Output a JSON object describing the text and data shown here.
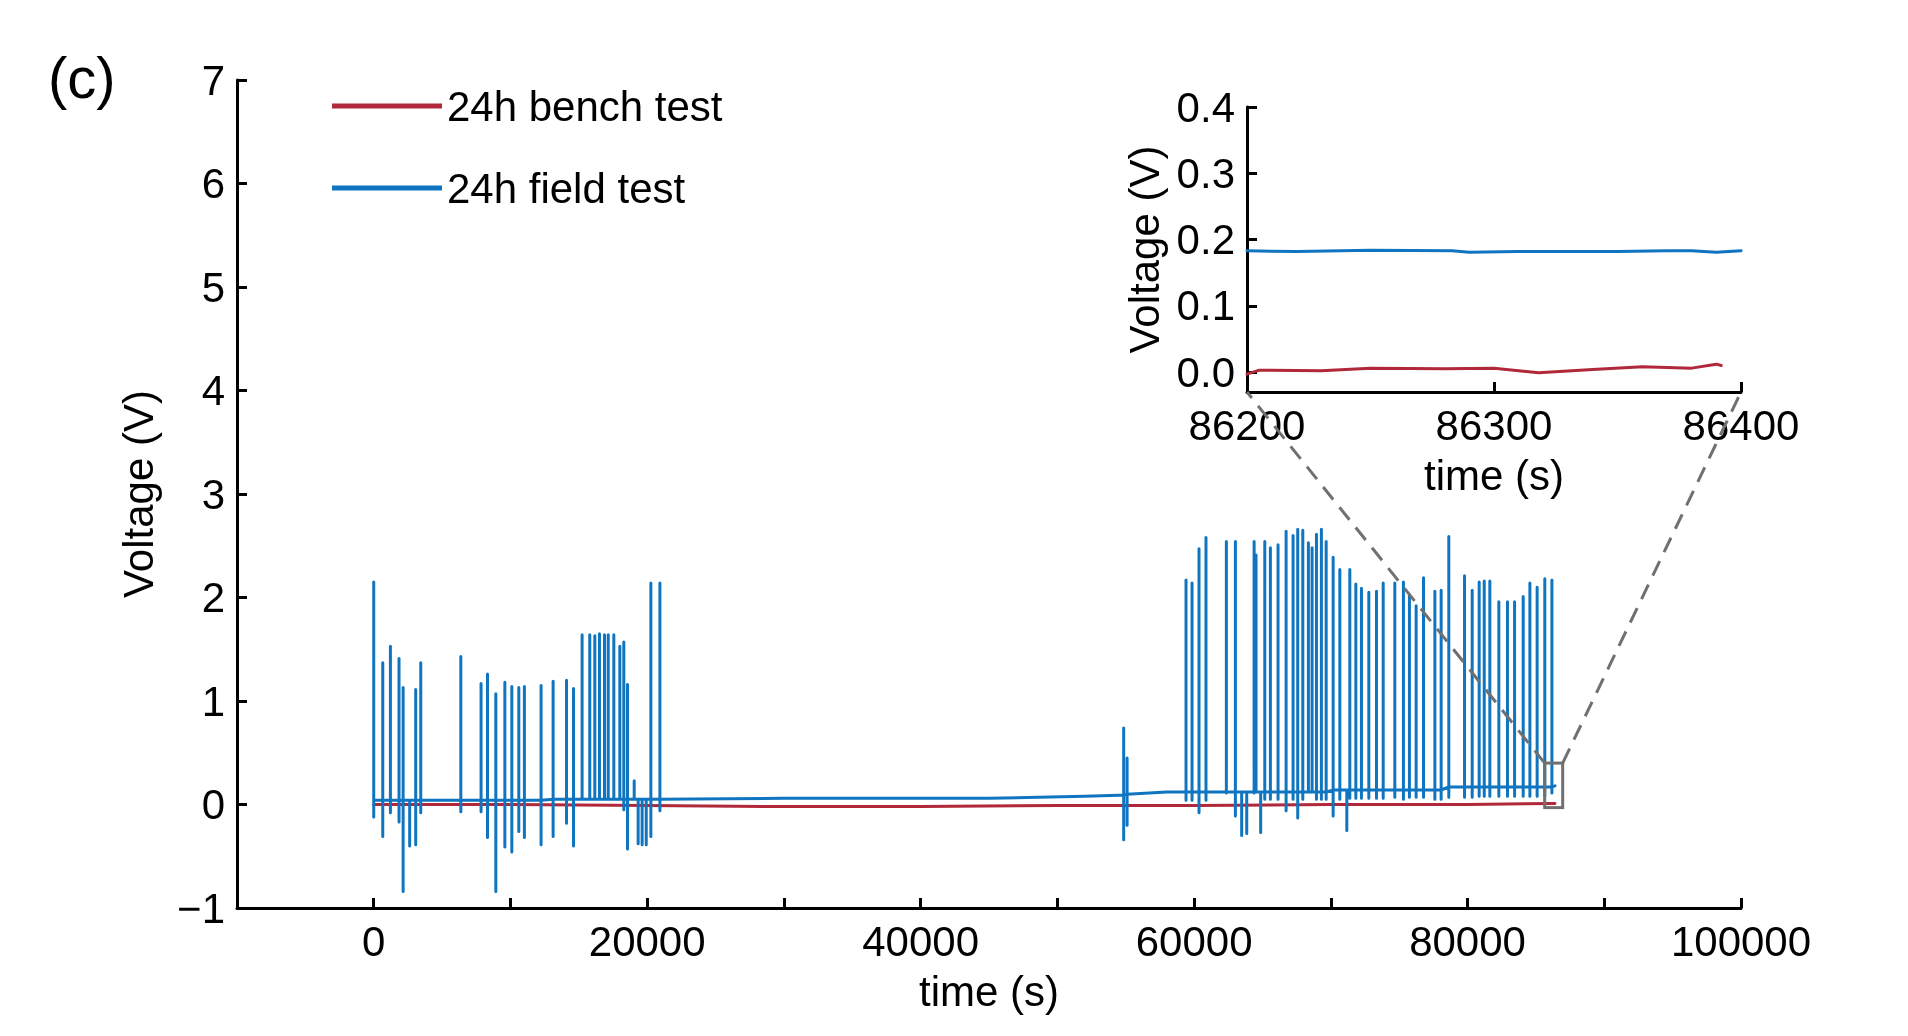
{
  "chart_data": [
    {
      "type": "line",
      "xlabel": "time (s)",
      "ylabel": "Voltage (V)",
      "annotations": [
        "(c)"
      ],
      "xlim": [
        -10000,
        100000
      ],
      "xticks": [
        0,
        {
          "value": 10000,
          "label": null
        },
        20000,
        {
          "value": 30000,
          "label": null
        },
        40000,
        {
          "value": 50000,
          "label": null
        },
        60000,
        {
          "value": 70000,
          "label": null
        },
        80000,
        {
          "value": 90000,
          "label": null
        },
        100000
      ],
      "ylim": [
        -1,
        7
      ],
      "yticks": [
        {
          "value": -1,
          "label": "−1"
        },
        0,
        1,
        2,
        3,
        4,
        5,
        6,
        7
      ],
      "grid": false,
      "legend": "top left",
      "series": [
        {
          "name": "24h bench test",
          "color": "#b0283a",
          "x": [
            0,
            10000,
            20000,
            30000,
            40000,
            50000,
            60000,
            70000,
            80000,
            86392
          ],
          "values": [
            0.0,
            0.0,
            -0.01,
            -0.02,
            -0.02,
            -0.01,
            -0.01,
            0.0,
            0.0,
            0.01
          ]
        },
        {
          "name": "24h field test",
          "color": "#0f75c0",
          "x": [
            0,
            0,
            0,
            0,
            660,
            660,
            660,
            660,
            1220,
            1220,
            1220,
            1220,
            1850,
            1850,
            1850,
            1850,
            2150,
            2150,
            2150,
            2150,
            2630,
            2630,
            2630,
            3070,
            3070,
            3070,
            3070,
            3440,
            3440,
            3440,
            3440,
            6370,
            6370,
            6370,
            6370,
            7850,
            7850,
            7850,
            7850,
            8320,
            8320,
            8320,
            8320,
            8930,
            8930,
            8930,
            8930,
            9590,
            9590,
            9590,
            9590,
            10100,
            10100,
            10100,
            10100,
            10610,
            10610,
            10610,
            10610,
            11020,
            11020,
            11020,
            11020,
            12240,
            12240,
            12240,
            12240,
            13120,
            13120,
            13120,
            13120,
            14100,
            14100,
            14100,
            14100,
            14610,
            14610,
            14610,
            14610,
            15240,
            15240,
            15240,
            15800,
            15800,
            15800,
            16170,
            16170,
            16170,
            16510,
            16510,
            16510,
            16880,
            16880,
            16880,
            17150,
            17150,
            17150,
            17560,
            17560,
            17560,
            18000,
            18000,
            18000,
            18290,
            18290,
            18290,
            18290,
            18560,
            18560,
            18560,
            18560,
            19050,
            19050,
            19050,
            19340,
            19340,
            19340,
            19630,
            19630,
            19630,
            19930,
            19930,
            19930,
            20270,
            20270,
            20270,
            20270,
            20930,
            20930,
            20930,
            20930,
            30000,
            45000,
            52000,
            54500,
            54850,
            54850,
            54850,
            54850,
            55100,
            55100,
            55100,
            55100,
            58000,
            59410,
            59410,
            59410,
            59410,
            59850,
            59850,
            59850,
            59850,
            60360,
            60360,
            60360,
            60360,
            60870,
            60870,
            60870,
            60870,
            62360,
            62360,
            62360,
            62360,
            63020,
            63020,
            63020,
            63020,
            63480,
            63480,
            63480,
            63850,
            63850,
            63850,
            64390,
            64390,
            64390,
            64390,
            64530,
            64530,
            64530,
            64870,
            64870,
            64870,
            65170,
            65170,
            65170,
            65170,
            65580,
            65580,
            65580,
            65580,
            66140,
            66140,
            66140,
            66140,
            66730,
            66730,
            66730,
            66730,
            67240,
            67240,
            67240,
            67240,
            67580,
            67580,
            67580,
            67580,
            67950,
            67950,
            67950,
            67950,
            68360,
            68360,
            68360,
            68630,
            68630,
            68630,
            68950,
            68950,
            68950,
            68950,
            69310,
            69310,
            69310,
            69310,
            69660,
            69660,
            69660,
            69660,
            70170,
            70170,
            70170,
            70170,
            70660,
            70660,
            70660,
            70660,
            71170,
            71170,
            71170,
            71390,
            71390,
            71390,
            71390,
            71830,
            71830,
            71830,
            71830,
            72240,
            72240,
            72240,
            72240,
            72780,
            72780,
            72780,
            72780,
            73340,
            73340,
            73340,
            73340,
            73830,
            73830,
            73830,
            73830,
            74680,
            74680,
            74680,
            74680,
            75310,
            75310,
            75310,
            75310,
            75750,
            75750,
            75750,
            75750,
            76240,
            76240,
            76240,
            76240,
            76780,
            76780,
            76780,
            76780,
            77610,
            77610,
            77610,
            77610,
            78070,
            78070,
            78070,
            78070,
            78630,
            78630,
            78630,
            78630,
            79780,
            79780,
            79780,
            79780,
            80340,
            80340,
            80340,
            80340,
            80850,
            80850,
            80850,
            80850,
            81220,
            81220,
            81220,
            81220,
            81630,
            81630,
            81630,
            81630,
            82290,
            82290,
            82290,
            82290,
            82920,
            82920,
            82920,
            82920,
            83440,
            83440,
            83440,
            83440,
            84070,
            84070,
            84070,
            84070,
            84560,
            84560,
            84560,
            84560,
            85090,
            85090,
            85090,
            85090,
            85650,
            85650,
            85650,
            85650,
            86170,
            86170,
            86170,
            86170,
            86400
          ],
          "values": [
            0.04,
            2.15,
            -0.12,
            0.04,
            0.04,
            1.37,
            -0.31,
            0.04,
            0.04,
            1.53,
            -0.08,
            0.04,
            0.04,
            1.41,
            -0.17,
            0.04,
            0.04,
            1.13,
            -0.84,
            0.04,
            0.04,
            -0.4,
            0.04,
            0.04,
            1.11,
            -0.39,
            0.04,
            0.04,
            1.37,
            -0.08,
            0.04,
            0.04,
            1.43,
            -0.07,
            0.04,
            0.04,
            1.17,
            -0.07,
            0.04,
            0.04,
            1.26,
            -0.32,
            0.04,
            0.04,
            1.07,
            -0.84,
            0.04,
            0.04,
            1.18,
            -0.41,
            0.04,
            0.04,
            1.14,
            -0.46,
            0.04,
            0.04,
            1.13,
            -0.26,
            0.04,
            0.04,
            1.14,
            -0.32,
            0.04,
            0.04,
            1.15,
            -0.39,
            0.04,
            0.05,
            1.19,
            -0.31,
            0.05,
            0.05,
            1.2,
            -0.18,
            0.05,
            0.05,
            1.12,
            -0.4,
            0.05,
            0.05,
            1.64,
            0.05,
            0.05,
            1.64,
            0.05,
            0.05,
            1.63,
            0.05,
            0.05,
            1.65,
            0.05,
            0.05,
            1.64,
            0.05,
            0.05,
            1.64,
            0.05,
            0.05,
            1.64,
            0.05,
            0.05,
            1.53,
            0.05,
            0.05,
            1.57,
            -0.05,
            0.05,
            0.05,
            1.16,
            -0.43,
            0.05,
            0.05,
            0.23,
            0.05,
            0.05,
            -0.38,
            0.05,
            0.05,
            -0.39,
            0.05,
            0.05,
            -0.39,
            0.05,
            0.05,
            2.14,
            -0.31,
            0.05,
            0.05,
            2.14,
            -0.06,
            0.05,
            0.06,
            0.06,
            0.08,
            0.09,
            0.09,
            0.74,
            -0.34,
            0.09,
            0.1,
            0.45,
            -0.2,
            0.1,
            0.12,
            0.12,
            2.17,
            0.04,
            0.12,
            0.12,
            2.14,
            0.04,
            0.12,
            0.12,
            2.47,
            -0.08,
            0.12,
            0.12,
            2.58,
            0.04,
            0.12,
            0.12,
            2.54,
            0.11,
            0.12,
            0.12,
            2.54,
            -0.11,
            0.12,
            0.12,
            -0.3,
            0.12,
            0.12,
            -0.28,
            0.12,
            0.12,
            2.54,
            0.11,
            0.12,
            0.12,
            2.41,
            0.12,
            0.12,
            -0.27,
            0.12,
            0.12,
            2.54,
            0.05,
            0.12,
            0.12,
            2.48,
            0.05,
            0.12,
            0.12,
            2.51,
            0.05,
            0.12,
            0.12,
            2.64,
            -0.06,
            0.12,
            0.12,
            2.6,
            0.05,
            0.12,
            0.12,
            2.66,
            -0.13,
            0.12,
            0.12,
            2.65,
            0.05,
            0.12,
            0.12,
            2.53,
            0.12,
            0.12,
            2.48,
            0.12,
            0.12,
            2.61,
            0.05,
            0.12,
            0.12,
            2.66,
            0.05,
            0.12,
            0.12,
            2.54,
            0.05,
            0.12,
            0.14,
            2.39,
            -0.11,
            0.14,
            0.14,
            2.27,
            0.05,
            0.14,
            0.14,
            -0.25,
            0.14,
            0.14,
            2.27,
            0.06,
            0.14,
            0.14,
            2.13,
            0.06,
            0.14,
            0.14,
            2.09,
            0.06,
            0.14,
            0.14,
            2.05,
            0.06,
            0.14,
            0.14,
            2.06,
            0.06,
            0.14,
            0.14,
            2.14,
            0.06,
            0.14,
            0.14,
            2.14,
            0.07,
            0.14,
            0.14,
            2.15,
            0.05,
            0.14,
            0.14,
            2.03,
            0.07,
            0.14,
            0.14,
            1.92,
            0.07,
            0.14,
            0.14,
            2.19,
            0.07,
            0.14,
            0.14,
            2.06,
            0.05,
            0.14,
            0.14,
            2.07,
            0.05,
            0.14,
            0.17,
            2.59,
            0.07,
            0.17,
            0.17,
            2.21,
            0.07,
            0.17,
            0.17,
            2.07,
            0.07,
            0.17,
            0.17,
            2.15,
            0.08,
            0.17,
            0.17,
            2.16,
            0.08,
            0.17,
            0.17,
            2.16,
            0.08,
            0.17,
            0.17,
            1.96,
            0.08,
            0.17,
            0.17,
            1.96,
            0.08,
            0.17,
            0.17,
            1.96,
            0.08,
            0.17,
            0.17,
            2.01,
            0.08,
            0.17,
            0.17,
            2.14,
            0.08,
            0.17,
            0.17,
            2.1,
            0.08,
            0.17,
            0.17,
            2.18,
            0.08,
            0.17,
            0.17,
            2.17,
            0.11,
            0.17,
            0.18
          ]
        }
      ]
    },
    {
      "type": "line",
      "xlabel": "time (s)",
      "ylabel": "Voltage (V)",
      "xlim": [
        86200,
        86400
      ],
      "xticks": [
        86200,
        86300,
        86400
      ],
      "ylim": [
        -0.03,
        0.4
      ],
      "yticks": [
        {
          "value": 0,
          "label": "0.0"
        },
        {
          "value": 0.1,
          "label": "0.1"
        },
        {
          "value": 0.2,
          "label": "0.2"
        },
        {
          "value": 0.3,
          "label": "0.3"
        },
        {
          "value": 0.4,
          "label": "0.4"
        }
      ],
      "grid": false,
      "series": [
        {
          "color": "#b0283a",
          "x": [
            86200,
            86205,
            86230,
            86250,
            86280,
            86300,
            86318,
            86340,
            86360,
            86380,
            86390,
            86392
          ],
          "values": [
            -0.003,
            0.003,
            0.002,
            0.006,
            0.005,
            0.006,
            -0.001,
            0.004,
            0.008,
            0.006,
            0.012,
            0.01
          ]
        },
        {
          "color": "#0f75c0",
          "x": [
            86200,
            86220,
            86250,
            86283,
            86290,
            86310,
            86330,
            86350,
            86370,
            86380,
            86390,
            86400
          ],
          "values": [
            0.183,
            0.182,
            0.184,
            0.183,
            0.181,
            0.182,
            0.182,
            0.182,
            0.183,
            0.183,
            0.181,
            0.183
          ]
        }
      ]
    }
  ]
}
